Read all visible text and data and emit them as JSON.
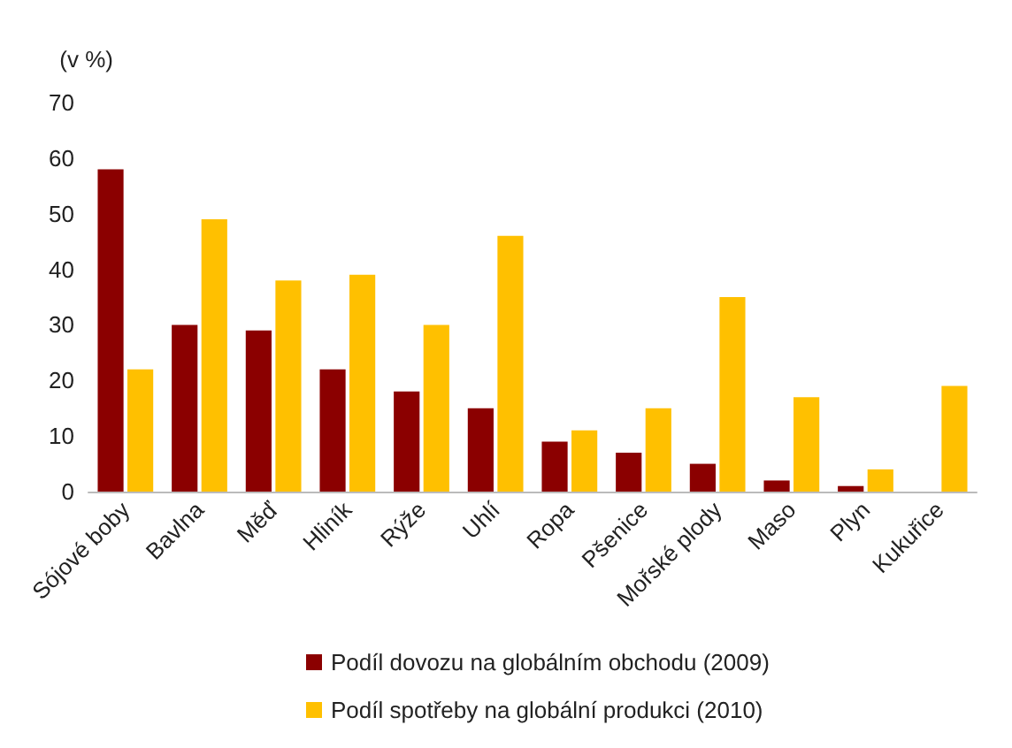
{
  "chart_data": {
    "type": "bar",
    "ylabel": "(v %)",
    "categories": [
      "Sójové boby",
      "Bavlna",
      "Měď",
      "Hliník",
      "Rýže",
      "Uhlí",
      "Ropa",
      "Pšenice",
      "Mořské plody",
      "Maso",
      "Plyn",
      "Kukuřice"
    ],
    "series": [
      {
        "name": "Podíl dovozu na globálním obchodu (2009)",
        "color": "#8b0000",
        "values": [
          58,
          30,
          29,
          22,
          18,
          15,
          9,
          7,
          5,
          2,
          1,
          null
        ]
      },
      {
        "name": "Podíl spotřeby na globální produkci (2010)",
        "color": "#ffc000",
        "values": [
          22,
          49,
          38,
          39,
          30,
          46,
          11,
          15,
          35,
          17,
          4,
          19
        ]
      }
    ],
    "ylim": [
      0,
      70
    ],
    "yticks": [
      0,
      10,
      20,
      30,
      40,
      50,
      60,
      70
    ],
    "grid": false,
    "legend": "bottom"
  }
}
